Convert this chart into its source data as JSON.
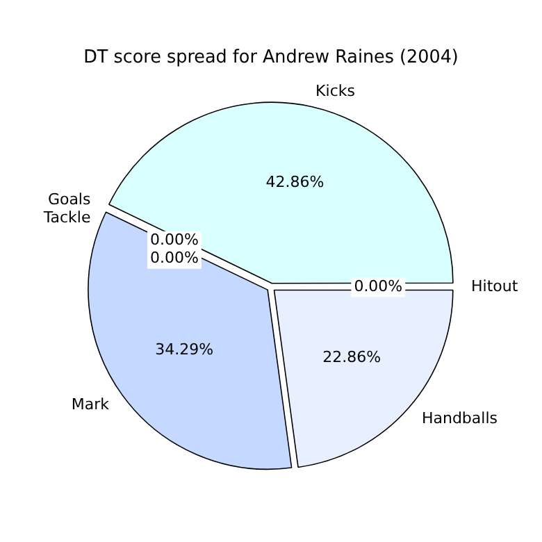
{
  "chart_data": {
    "type": "pie",
    "title": "DT score spread for Andrew Raines (2004)",
    "categories": [
      "Handballs",
      "Mark",
      "Goals",
      "Tackle",
      "Kicks",
      "Hitout"
    ],
    "values": [
      22.86,
      34.29,
      0.0,
      0.0,
      42.86,
      0.0
    ],
    "colors": [
      "#e8f0ff",
      "#c5d8ff",
      "#b0c8ff",
      "#a0ffd0",
      "#d9ffff",
      "#f0f0ff"
    ],
    "value_labels": [
      "22.86%",
      "34.29%",
      "0.00%",
      "0.00%",
      "42.86%",
      "0.00%"
    ],
    "legend": false
  }
}
